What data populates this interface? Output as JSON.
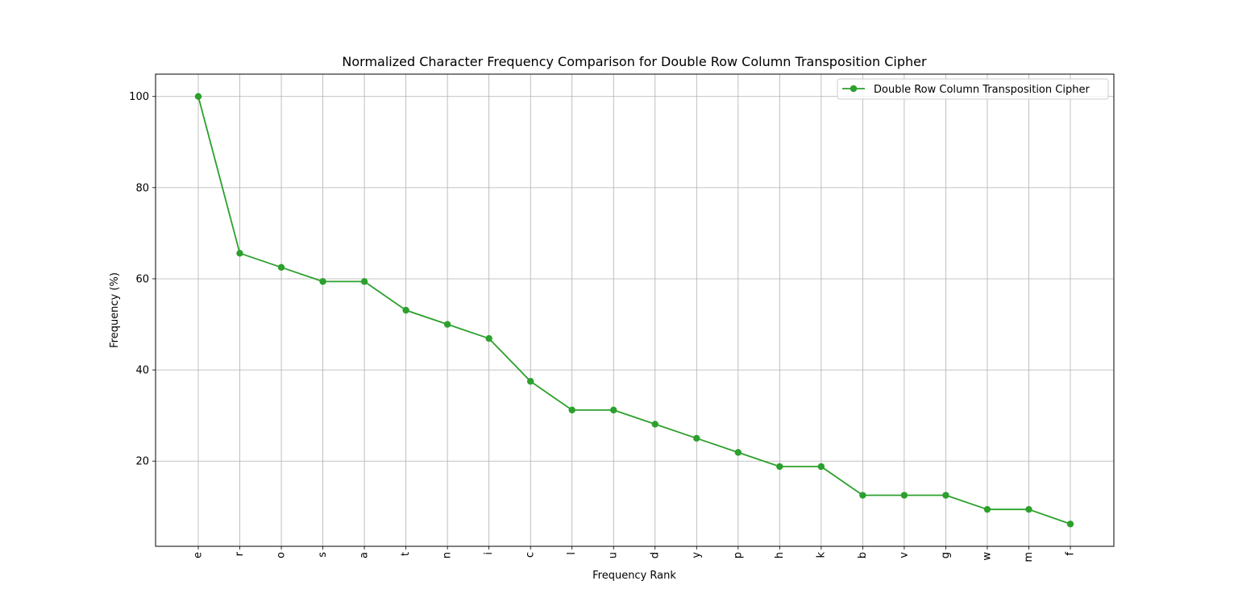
{
  "chart_data": {
    "type": "line",
    "title": "Normalized Character Frequency Comparison for Double Row Column Transposition Cipher",
    "xlabel": "Frequency Rank",
    "ylabel": "Frequency (%)",
    "categories": [
      "e",
      "r",
      "o",
      "s",
      "a",
      "t",
      "n",
      "i",
      "c",
      "l",
      "u",
      "d",
      "y",
      "p",
      "h",
      "k",
      "b",
      "v",
      "g",
      "w",
      "m",
      "f"
    ],
    "series": [
      {
        "name": "Double Row Column Transposition Cipher",
        "color": "#2ca02c",
        "marker": "circle",
        "values": [
          100,
          65.6,
          62.5,
          59.4,
          59.4,
          53.1,
          50.0,
          46.9,
          37.5,
          31.2,
          31.2,
          28.1,
          25.0,
          21.9,
          18.8,
          18.8,
          12.5,
          12.5,
          12.5,
          9.4,
          9.4,
          6.2
        ]
      }
    ],
    "y_ticks": [
      20,
      40,
      60,
      80,
      100
    ],
    "ylim": [
      1.3,
      104.9
    ],
    "grid": true,
    "legend_position": "top-right",
    "x_tick_rotation": "vertical"
  }
}
